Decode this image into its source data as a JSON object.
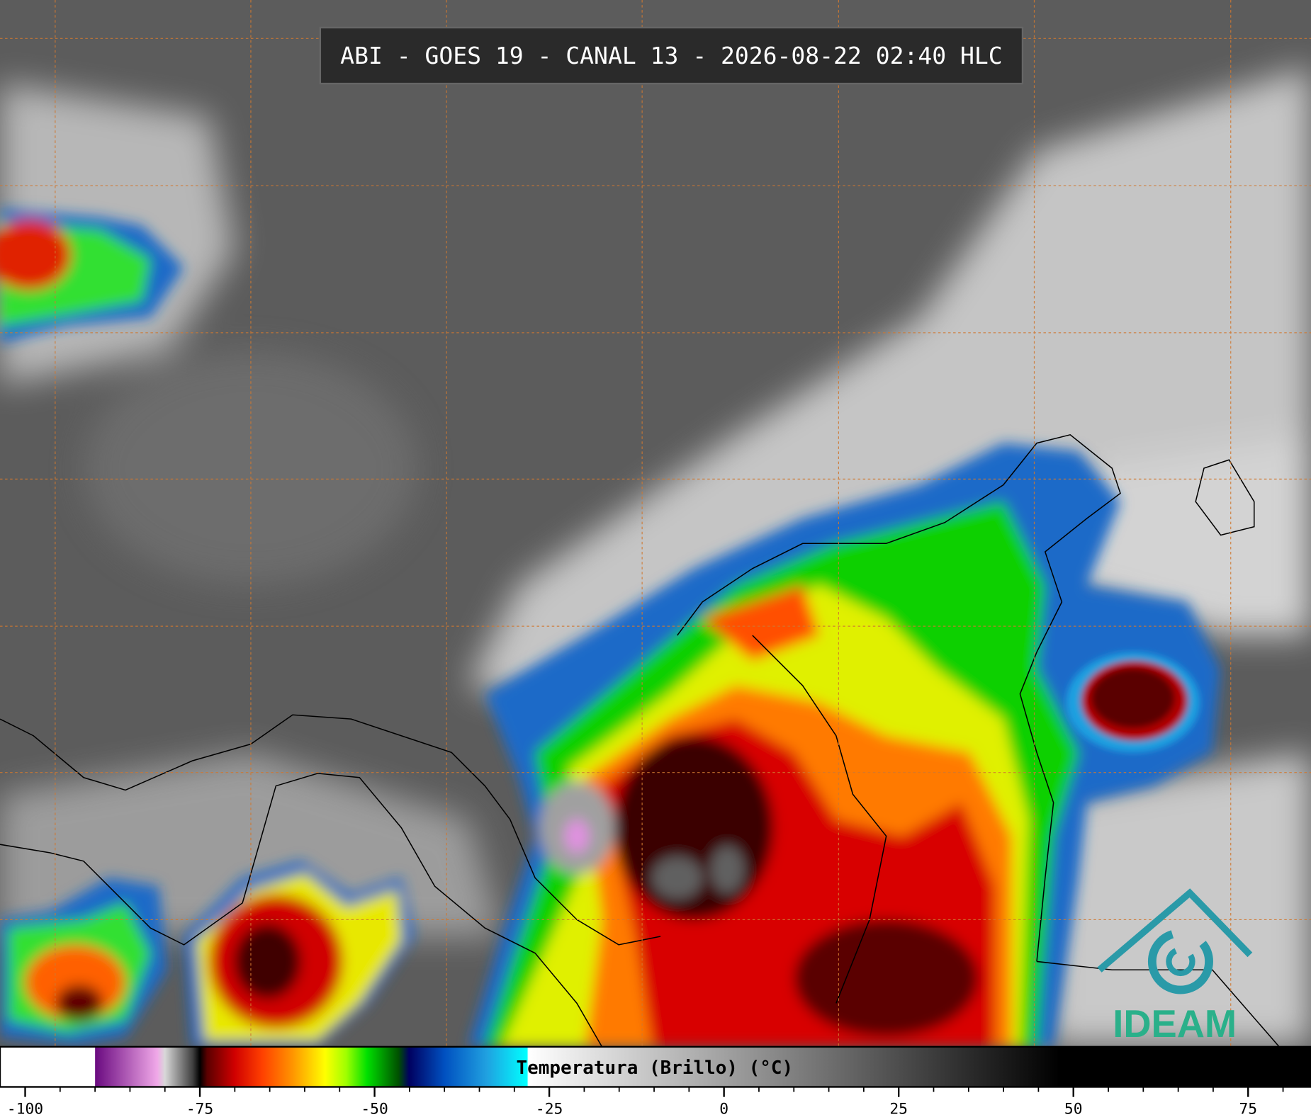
{
  "header": {
    "title": "ABI - GOES 19 - CANAL 13 - 2026-08-22 02:40 HLC"
  },
  "colorbar": {
    "label": "Temperatura (Brillo) (°C)",
    "range": [
      -103.6,
      84
    ],
    "ticks": [
      -100,
      -75,
      -50,
      -25,
      0,
      25,
      50,
      75
    ],
    "minor_step": 5
  },
  "logo": {
    "text": "IDEAM"
  }
}
